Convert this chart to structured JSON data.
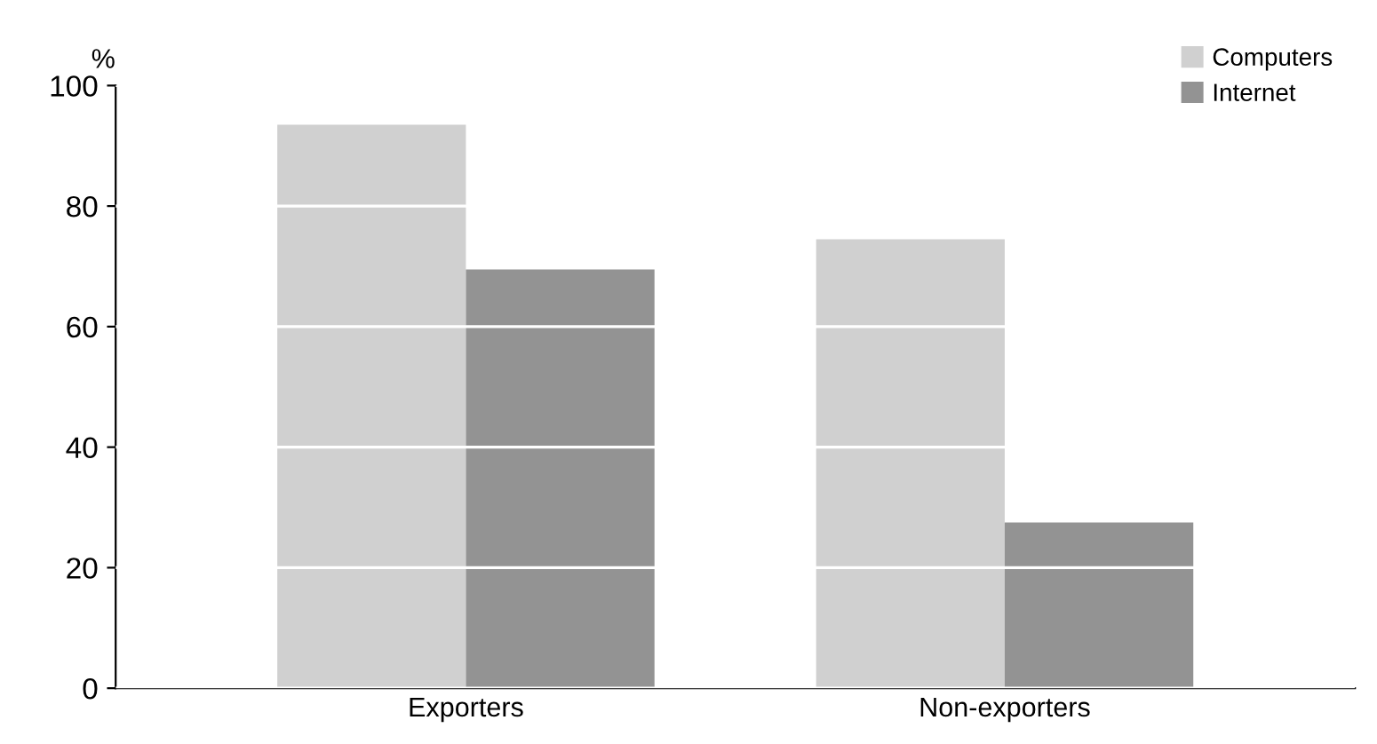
{
  "chart_data": {
    "type": "bar",
    "ylabel": "%",
    "categories": [
      "Exporters",
      "Non-exporters"
    ],
    "series": [
      {
        "name": "Computers",
        "color": "#d0d0d0",
        "values": [
          93.5,
          74.5
        ]
      },
      {
        "name": "Internet",
        "color": "#939393",
        "values": [
          69.5,
          27.5
        ]
      }
    ],
    "ylim": [
      0,
      100
    ],
    "yticks": [
      0,
      20,
      40,
      60,
      80,
      100
    ],
    "grid": "y",
    "legend": "top right"
  }
}
